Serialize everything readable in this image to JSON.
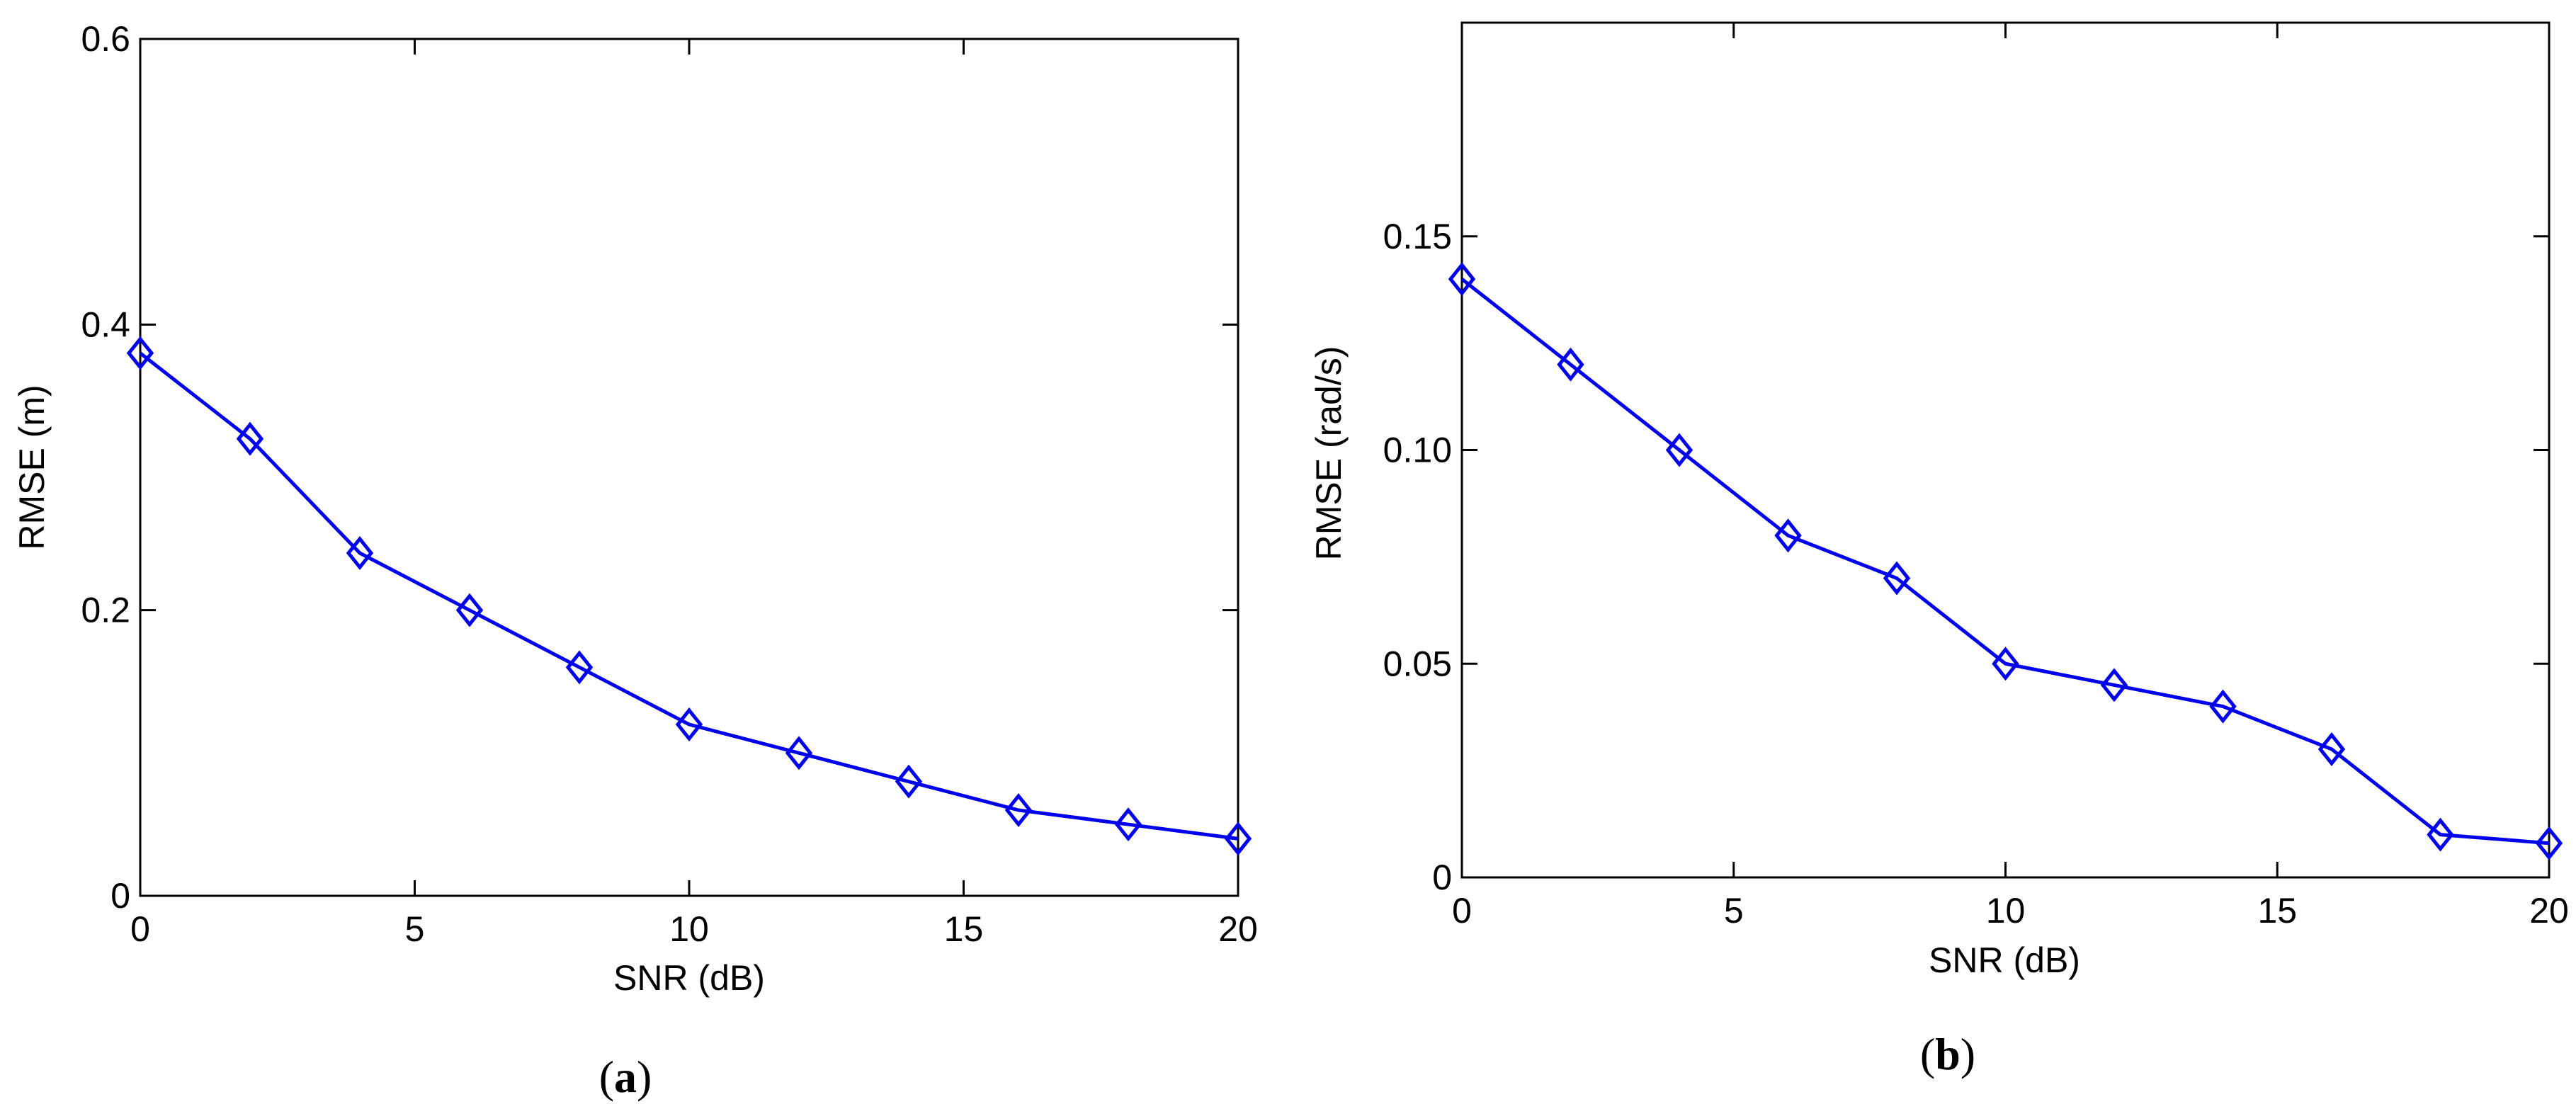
{
  "chart_data": [
    {
      "type": "line",
      "panel_label": "a",
      "xlabel": "SNR (dB)",
      "ylabel": "RMSE (m)",
      "xlim": [
        0,
        20
      ],
      "ylim": [
        0,
        0.6
      ],
      "xticks": [
        0,
        5,
        10,
        15,
        20
      ],
      "xtick_labels": [
        "0",
        "5",
        "10",
        "15",
        "20"
      ],
      "yticks": [
        0,
        0.2,
        0.4,
        0.6
      ],
      "ytick_labels": [
        "0",
        "0.2",
        "0.4",
        "0.6"
      ],
      "grid": false,
      "series": [
        {
          "color": "#0000ee",
          "marker": "diamond",
          "x": [
            0,
            2,
            4,
            6,
            8,
            10,
            12,
            14,
            16,
            18,
            20
          ],
          "y": [
            0.38,
            0.32,
            0.24,
            0.2,
            0.16,
            0.12,
            0.1,
            0.08,
            0.06,
            0.05,
            0.04
          ]
        }
      ]
    },
    {
      "type": "line",
      "panel_label": "b",
      "xlabel": "SNR (dB)",
      "ylabel": "RMSE (rad/s)",
      "xlim": [
        0,
        20
      ],
      "ylim": [
        0,
        0.2
      ],
      "xticks": [
        0,
        5,
        10,
        15,
        20
      ],
      "xtick_labels": [
        "0",
        "5",
        "10",
        "15",
        "20"
      ],
      "yticks": [
        0,
        0.05,
        0.1,
        0.15
      ],
      "ytick_labels": [
        "0",
        "0.05",
        "0.10",
        "0.15"
      ],
      "grid": false,
      "series": [
        {
          "color": "#0000ee",
          "marker": "diamond",
          "x": [
            0,
            2,
            4,
            6,
            8,
            10,
            12,
            14,
            16,
            18,
            20
          ],
          "y": [
            0.14,
            0.12,
            0.1,
            0.08,
            0.07,
            0.05,
            0.045,
            0.04,
            0.03,
            0.01,
            0.008
          ]
        }
      ]
    }
  ]
}
